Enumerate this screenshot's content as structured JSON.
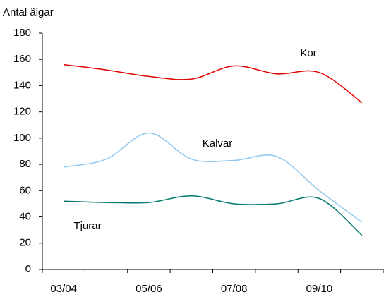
{
  "chart_data": {
    "type": "line",
    "y_axis_label": "Antal älgar",
    "categories": [
      "03/04",
      null,
      "05/06",
      null,
      "07/08",
      null,
      "09/10",
      null
    ],
    "series": [
      {
        "name": "Kor",
        "color": "#e00000",
        "values": [
          156,
          152,
          147,
          145,
          155,
          149,
          150,
          127
        ]
      },
      {
        "name": "Kalvar",
        "color": "#8ec8f0",
        "values": [
          78,
          84,
          104,
          84,
          83,
          86,
          60,
          36
        ]
      },
      {
        "name": "Tjurar",
        "color": "#007a70",
        "values": [
          52,
          51,
          51,
          56,
          50,
          50,
          54,
          26
        ]
      }
    ],
    "ylim": [
      0,
      180
    ],
    "yticks": [
      0,
      20,
      40,
      60,
      80,
      100,
      120,
      140,
      160,
      180
    ],
    "grid": false
  }
}
